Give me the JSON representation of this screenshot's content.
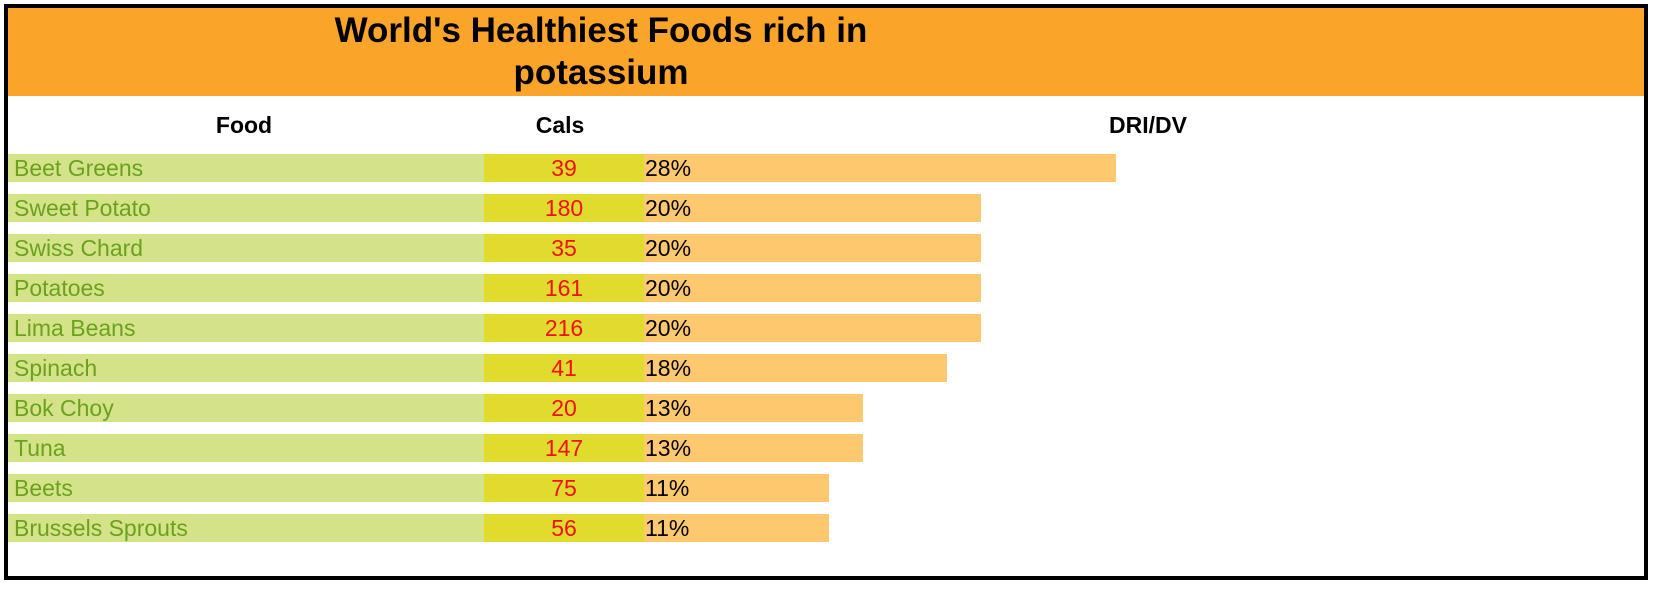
{
  "chart_data": {
    "type": "table",
    "title_lines": [
      "World's Healthiest Foods rich in",
      "potassium"
    ],
    "columns": {
      "food": "Food",
      "cals": "Cals",
      "dri": "DRI/DV"
    },
    "dri_max": 28,
    "rows": [
      {
        "food": "Beet Greens",
        "cals": 39,
        "dri": 28,
        "dri_label": "28%"
      },
      {
        "food": "Sweet Potato",
        "cals": 180,
        "dri": 20,
        "dri_label": "20%"
      },
      {
        "food": "Swiss Chard",
        "cals": 35,
        "dri": 20,
        "dri_label": "20%"
      },
      {
        "food": "Potatoes",
        "cals": 161,
        "dri": 20,
        "dri_label": "20%"
      },
      {
        "food": "Lima Beans",
        "cals": 216,
        "dri": 20,
        "dri_label": "20%"
      },
      {
        "food": "Spinach",
        "cals": 41,
        "dri": 18,
        "dri_label": "18%"
      },
      {
        "food": "Bok Choy",
        "cals": 20,
        "dri": 13,
        "dri_label": "13%"
      },
      {
        "food": "Tuna",
        "cals": 147,
        "dri": 13,
        "dri_label": "13%"
      },
      {
        "food": "Beets",
        "cals": 75,
        "dri": 11,
        "dri_label": "11%"
      },
      {
        "food": "Brussels Sprouts",
        "cals": 56,
        "dri": 11,
        "dri_label": "11%"
      }
    ]
  },
  "colors": {
    "title_bg": "#fba42a",
    "food_bg": "#d4e38a",
    "food_text": "#6aa21f",
    "cals_bg": "#e0db2c",
    "cals_text": "#ee1111",
    "dri_bar": "#fec86e"
  }
}
